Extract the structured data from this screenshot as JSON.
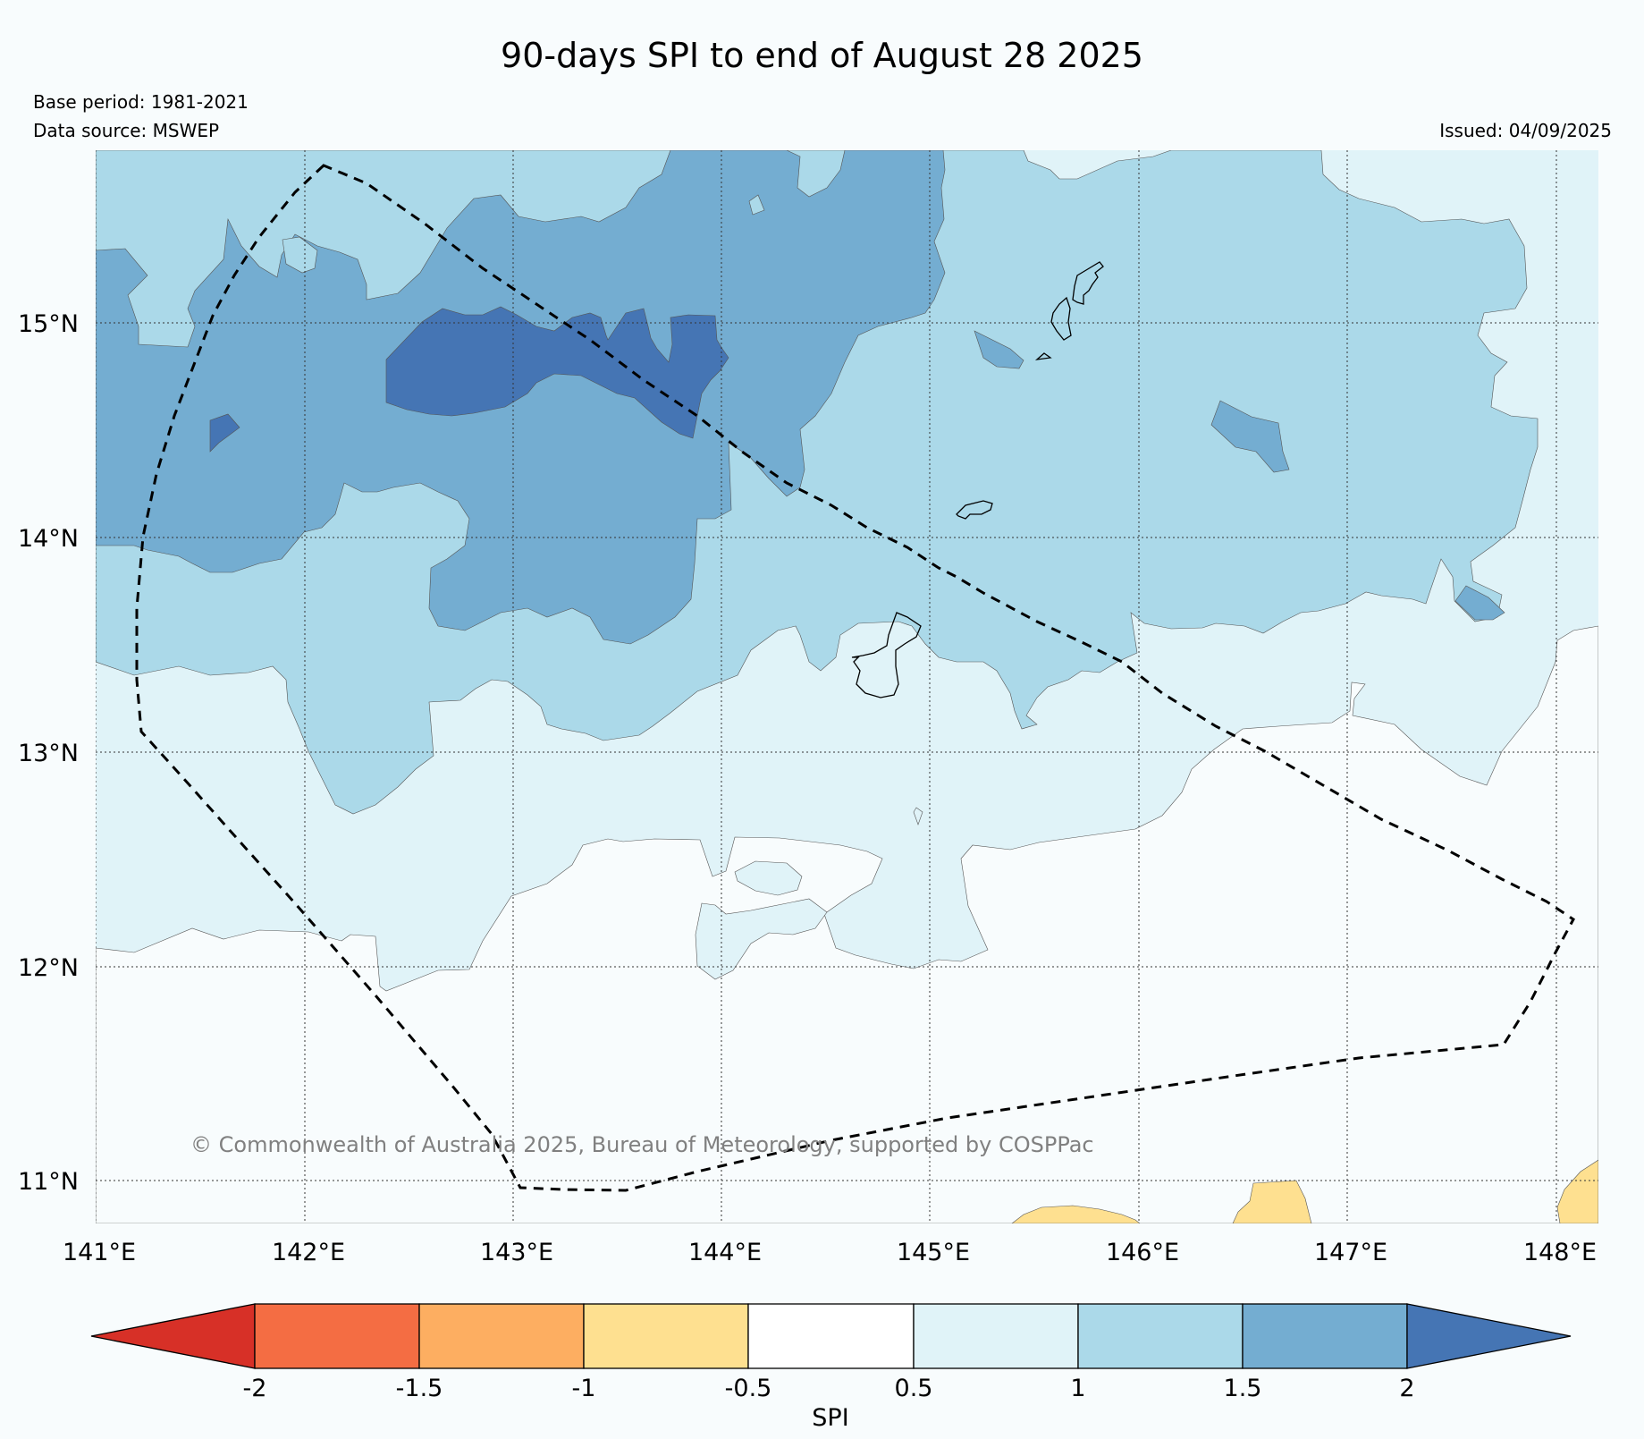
{
  "title": "90-days SPI to end of August 28 2025",
  "base_period": "Base period: 1981-2021",
  "data_source": "Data source: MSWEP",
  "issued": "Issued: 04/09/2025",
  "copyright": "© Commonwealth of Australia 2025, Bureau of Meteorology, supported by COSPPac",
  "map": {
    "lon_range": [
      141,
      148.2
    ],
    "lat_range": [
      10.8,
      15.8
    ],
    "lon_ticks": [
      "141°E",
      "142°E",
      "143°E",
      "144°E",
      "145°E",
      "146°E",
      "147°E",
      "148°E"
    ],
    "lat_ticks": [
      "11°N",
      "12°N",
      "13°N",
      "14°N",
      "15°N"
    ],
    "gridlines": "dotted",
    "boundary": "dashed polygon"
  },
  "colorbar": {
    "label": "SPI",
    "ticks": [
      "-2",
      "-1.5",
      "-1",
      "-0.5",
      "0.5",
      "1",
      "1.5",
      "2"
    ],
    "colors": [
      "#d73027",
      "#f46d43",
      "#fdae61",
      "#fee090",
      "#ffffff",
      "#e0f3f8",
      "#abd9e9",
      "#74add1",
      "#4575b4"
    ]
  }
}
